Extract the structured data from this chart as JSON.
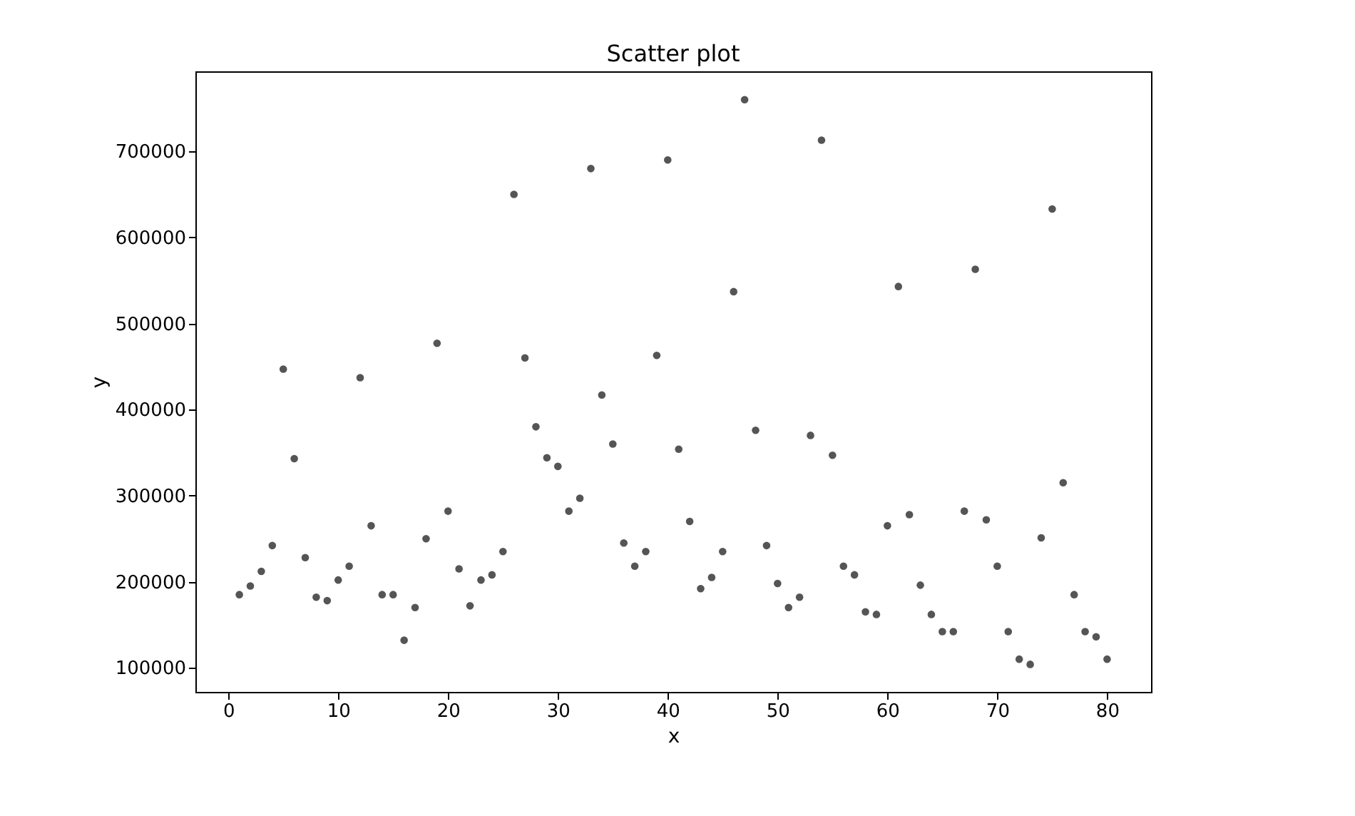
{
  "chart_data": {
    "type": "scatter",
    "title": "Scatter plot",
    "xlabel": "x",
    "ylabel": "y",
    "x": [
      1,
      2,
      3,
      4,
      5,
      6,
      7,
      8,
      9,
      10,
      11,
      12,
      13,
      14,
      15,
      16,
      17,
      18,
      19,
      20,
      21,
      22,
      23,
      24,
      25,
      26,
      27,
      28,
      29,
      30,
      31,
      32,
      33,
      34,
      35,
      36,
      37,
      38,
      39,
      40,
      41,
      42,
      43,
      44,
      45,
      46,
      47,
      48,
      49,
      50,
      51,
      52,
      53,
      54,
      55,
      56,
      57,
      58,
      59,
      60,
      61,
      62,
      63,
      64,
      65,
      66,
      67,
      68,
      69,
      70,
      71,
      72,
      73,
      74,
      75,
      76,
      77,
      78,
      79,
      80
    ],
    "series": [
      {
        "color": "#555555",
        "values": [
          185000,
          195000,
          212000,
          242000,
          447000,
          343000,
          228000,
          182000,
          178000,
          202000,
          218000,
          437000,
          265000,
          185000,
          185000,
          132000,
          170000,
          250000,
          477000,
          282000,
          215000,
          172000,
          202000,
          208000,
          235000,
          650000,
          460000,
          380000,
          344000,
          334000,
          282000,
          297000,
          680000,
          417000,
          360000,
          245000,
          218000,
          235000,
          463000,
          690000,
          354000,
          270000,
          192000,
          205000,
          235000,
          537000,
          760000,
          376000,
          242000,
          198000,
          170000,
          182000,
          370000,
          713000,
          347000,
          218000,
          208000,
          165000,
          162000,
          265000,
          543000,
          278000,
          196000,
          162000,
          142000,
          142000,
          282000,
          563000,
          272000,
          218000,
          142000,
          110000,
          104000,
          251000,
          633000,
          315000,
          185000,
          142000,
          136000,
          110000
        ]
      }
    ],
    "xlim": [
      -3,
      84
    ],
    "xticks": [
      0,
      10,
      20,
      30,
      40,
      50,
      60,
      70,
      80
    ],
    "ylim": [
      72000,
      793000
    ],
    "yticks": [
      100000,
      200000,
      300000,
      400000,
      500000,
      600000,
      700000
    ],
    "marker": "circle",
    "grid": false,
    "legend": false
  }
}
